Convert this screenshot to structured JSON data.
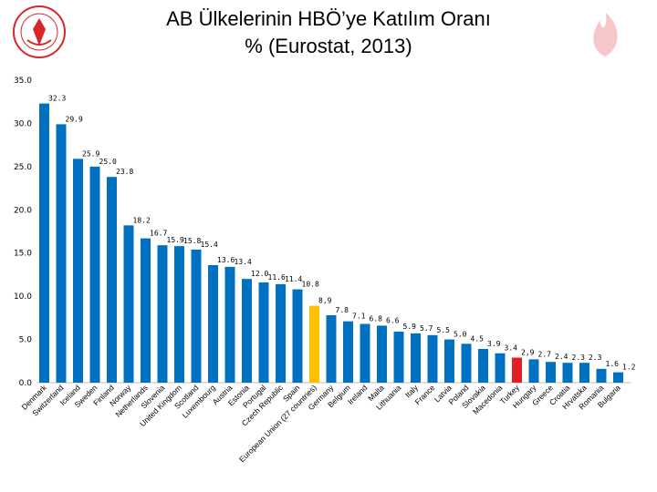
{
  "slide": {
    "title_line1": "AB Ülkelerinin HBÖ’ye Katılım Oranı",
    "title_line2": "% (Eurostat, 2013)"
  },
  "colors": {
    "bar": "#0070C0",
    "highlight_eu": "#FFC000",
    "highlight_tr": "#E31F26",
    "logo_red": "#D9262B"
  },
  "chart_data": {
    "type": "bar",
    "title": "AB Ülkelerinin HBÖ’ye Katılım Oranı % (Eurostat, 2013)",
    "xlabel": "",
    "ylabel": "",
    "ylim": [
      0,
      35
    ],
    "yticks": [
      "0.0",
      "5.0",
      "10.0",
      "15.0",
      "20.0",
      "25.0",
      "30.0",
      "35.0"
    ],
    "grid": false,
    "categories": [
      "Denmark",
      "Switzerland",
      "Iceland",
      "Sweden",
      "Finland",
      "Norway",
      "Netherlands",
      "Slovenia",
      "United Kingdom",
      "Scotland",
      "Luxembourg",
      "Austria",
      "Estonia",
      "Portugal",
      "Czech Republic",
      "Spain",
      "European Union (27 countries)",
      "Germany",
      "Belgium",
      "Ireland",
      "Malta",
      "Lithuania",
      "Italy",
      "France",
      "Latvia",
      "Poland",
      "Slovakia",
      "Macedonia",
      "Turkey",
      "Hungary",
      "Greece",
      "Croatia",
      "Hrvatska",
      "Romania",
      "Bulgaria"
    ],
    "values": [
      32.3,
      29.9,
      25.9,
      25.0,
      23.8,
      18.2,
      16.7,
      15.9,
      15.8,
      15.4,
      13.6,
      13.4,
      12.0,
      11.6,
      11.4,
      10.8,
      8.9,
      7.8,
      7.1,
      6.8,
      6.6,
      5.9,
      5.7,
      5.5,
      5.0,
      4.5,
      3.9,
      3.4,
      2.9,
      2.7,
      2.4,
      2.3,
      2.3,
      1.6,
      1.2
    ],
    "labels": [
      "32.3",
      "29.9",
      "25.9",
      "25.0",
      "23.8",
      "18.2",
      "16.7",
      "15.9",
      "15.8",
      "15.4",
      "13.6",
      "13.4",
      "12.0",
      "11.6",
      "11.4",
      "10.8",
      "8,9",
      "7.8",
      "7.1",
      "6.8",
      "6.6",
      "5.9",
      "5.7",
      "5.5",
      "5.0",
      "4.5",
      "3.9",
      "3.4",
      "2,9",
      "2.7",
      "2.4",
      "2.3",
      "2.3",
      "1.6",
      "1.2"
    ],
    "highlight": {
      "European Union (27 countries)": "eu",
      "Turkey": "tr"
    }
  }
}
